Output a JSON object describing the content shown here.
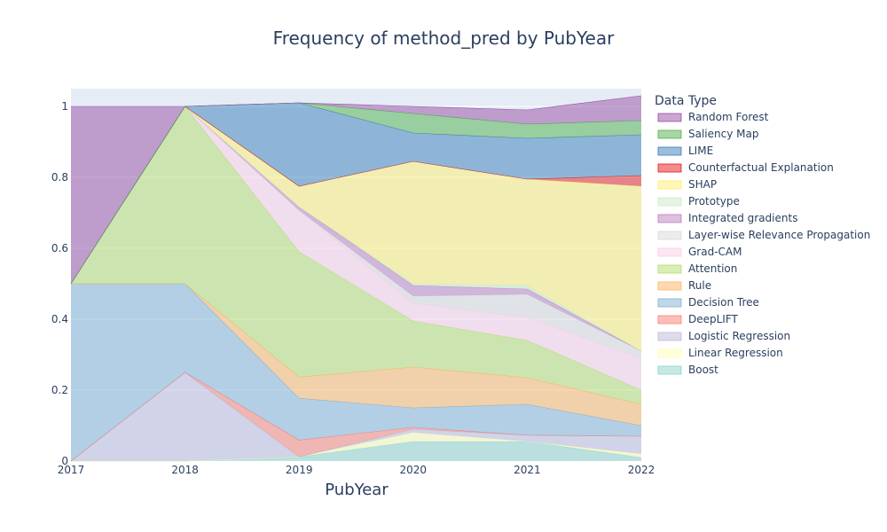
{
  "chart_data": {
    "type": "area",
    "stacked": "normalized",
    "title": "Frequency of method_pred by PubYear",
    "xlabel": "PubYear",
    "ylabel": "",
    "x": [
      "2017",
      "2018",
      "2019",
      "2020",
      "2021",
      "2022"
    ],
    "xlim": [
      2017,
      2022
    ],
    "ylim": [
      0,
      1.05
    ],
    "yticks": [
      "0",
      "0.2",
      "0.4",
      "0.6",
      "0.8",
      "1"
    ],
    "grid": true,
    "plot_background": "#e5ecf6",
    "legend": {
      "title": "Data Type",
      "position": "right"
    },
    "series": [
      {
        "name": "Boost",
        "color": "#8dd3c7",
        "values": [
          0,
          0,
          0.012,
          0.055,
          0.055,
          0.01
        ]
      },
      {
        "name": "Linear Regression",
        "color": "#ffffb3",
        "values": [
          0,
          0,
          0,
          0.025,
          0,
          0.01
        ]
      },
      {
        "name": "Logistic Regression",
        "color": "#bebada",
        "values": [
          0,
          0.25,
          0,
          0.01,
          0.018,
          0.05
        ]
      },
      {
        "name": "DeepLIFT",
        "color": "#fb8072",
        "values": [
          0,
          0,
          0.047,
          0.005,
          0,
          0
        ]
      },
      {
        "name": "Decision Tree",
        "color": "#80b1d3",
        "values": [
          0.5,
          0.25,
          0.118,
          0.055,
          0.087,
          0.03
        ]
      },
      {
        "name": "Rule",
        "color": "#fdb462",
        "values": [
          0,
          0,
          0.06,
          0.115,
          0.075,
          0.06
        ]
      },
      {
        "name": "Attention",
        "color": "#b3de69",
        "values": [
          0,
          0.5,
          0.353,
          0.13,
          0.105,
          0.04
        ]
      },
      {
        "name": "Grad-CAM",
        "color": "#fccde5",
        "values": [
          0,
          0,
          0.117,
          0.05,
          0.065,
          0.09
        ]
      },
      {
        "name": "Layer-wise Relevance Propagation",
        "color": "#d9d9d9",
        "values": [
          0,
          0,
          0,
          0.02,
          0.065,
          0.02
        ]
      },
      {
        "name": "Integrated gradients",
        "color": "#bc80bd",
        "values": [
          0,
          0,
          0.01,
          0.03,
          0.015,
          0
        ]
      },
      {
        "name": "Prototype",
        "color": "#ccebc5",
        "values": [
          0,
          0,
          0,
          0.005,
          0.01,
          0
        ]
      },
      {
        "name": "SHAP",
        "color": "#ffed6f",
        "values": [
          0,
          0,
          0.058,
          0.345,
          0.3,
          0.465
        ]
      },
      {
        "name": "Counterfactual Explanation",
        "color": "#e41a1c",
        "values": [
          0,
          0,
          0,
          0,
          0,
          0.03
        ]
      },
      {
        "name": "LIME",
        "color": "#377eb8",
        "values": [
          0,
          0,
          0.235,
          0.08,
          0.115,
          0.115
        ]
      },
      {
        "name": "Saliency Map",
        "color": "#4daf4a",
        "values": [
          0,
          0,
          0,
          0.055,
          0.04,
          0.04
        ]
      },
      {
        "name": "Random Forest",
        "color": "#984ea3",
        "values": [
          0.5,
          0,
          0,
          0.02,
          0.04,
          0.07
        ]
      }
    ]
  }
}
